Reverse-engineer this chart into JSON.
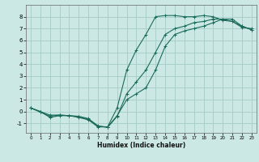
{
  "xlabel": "Humidex (Indice chaleur)",
  "bg_color": "#cce8e4",
  "grid_color": "#aacfcb",
  "line_color": "#1a6b5a",
  "xlim": [
    -0.5,
    23.5
  ],
  "ylim": [
    -1.8,
    9.0
  ],
  "xticks": [
    0,
    1,
    2,
    3,
    4,
    5,
    6,
    7,
    8,
    9,
    10,
    11,
    12,
    13,
    14,
    15,
    16,
    17,
    18,
    19,
    20,
    21,
    22,
    23
  ],
  "yticks": [
    -1,
    0,
    1,
    2,
    3,
    4,
    5,
    6,
    7,
    8
  ],
  "lines": [
    {
      "x": [
        0,
        1,
        2,
        3,
        4,
        5,
        6,
        7,
        8,
        9,
        10,
        11,
        12,
        13,
        14,
        15,
        16,
        17,
        18,
        19,
        20,
        21,
        22,
        23
      ],
      "y": [
        0.3,
        0.0,
        -0.3,
        -0.3,
        -0.35,
        -0.5,
        -0.7,
        -1.3,
        -1.3,
        0.3,
        3.5,
        5.2,
        6.5,
        8.0,
        8.1,
        8.1,
        8.0,
        8.0,
        8.1,
        8.0,
        7.7,
        7.6,
        7.1,
        7.0
      ]
    },
    {
      "x": [
        0,
        1,
        2,
        3,
        4,
        5,
        6,
        7,
        8,
        9,
        10,
        11,
        12,
        13,
        14,
        15,
        16,
        17,
        18,
        19,
        20,
        21,
        22,
        23
      ],
      "y": [
        0.3,
        0.0,
        -0.5,
        -0.35,
        -0.35,
        -0.4,
        -0.6,
        -1.2,
        -1.35,
        -0.4,
        1.5,
        2.5,
        3.5,
        5.0,
        6.5,
        7.0,
        7.2,
        7.5,
        7.6,
        7.8,
        7.8,
        7.6,
        7.2,
        6.9
      ]
    },
    {
      "x": [
        0,
        1,
        2,
        3,
        4,
        5,
        6,
        7,
        8,
        9,
        10,
        11,
        12,
        13,
        14,
        15,
        16,
        17,
        18,
        19,
        20,
        21,
        22,
        23
      ],
      "y": [
        0.3,
        -0.05,
        -0.4,
        -0.3,
        -0.35,
        -0.45,
        -0.65,
        -1.25,
        -1.3,
        -0.35,
        1.0,
        1.5,
        2.0,
        3.5,
        5.5,
        6.5,
        6.8,
        7.0,
        7.2,
        7.5,
        7.8,
        7.8,
        7.2,
        6.9
      ]
    }
  ]
}
